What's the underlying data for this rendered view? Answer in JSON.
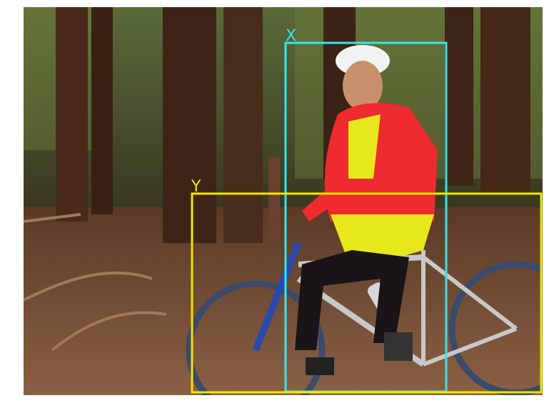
{
  "photo": {
    "subject": "cyclist-on-mountain-bike-in-redwood-forest"
  },
  "boxes": [
    {
      "label": "X",
      "color": "#33e6ee"
    },
    {
      "label": "Y",
      "color": "#f2e600"
    }
  ],
  "colors": {
    "background": "#ffffff",
    "forest_dark": "#2a1a10",
    "forest_floor": "#6b4a32",
    "jersey": "#ee2b2e",
    "shorts_yellow": "#e6e81c"
  }
}
